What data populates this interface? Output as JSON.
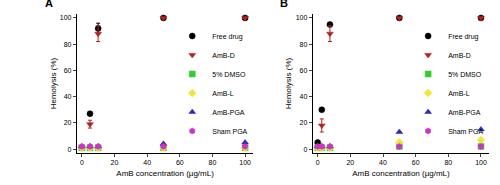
{
  "chart_data": [
    {
      "type": "scatter",
      "title": "A",
      "x_label": "AmB concentration (µg/mL)",
      "y_label": "Hemolysis (%)",
      "xlim": [
        -3,
        105
      ],
      "xticks": [
        0,
        20,
        40,
        60,
        80,
        100
      ],
      "ylim": [
        -3,
        103
      ],
      "yticks": [
        0,
        20,
        40,
        60,
        80,
        100
      ],
      "grid": false,
      "legend": "right",
      "x": [
        0,
        5,
        10,
        50,
        100
      ],
      "series": [
        {
          "name": "Free drug",
          "color": "#000000",
          "marker": "circle",
          "values": [
            1,
            27,
            92,
            100,
            100
          ],
          "error": [
            0,
            1,
            4,
            0,
            0
          ]
        },
        {
          "name": "AmB-D",
          "color": "#b22222",
          "marker": "triangle-down",
          "values": [
            1,
            19,
            88,
            100,
            100
          ],
          "error": [
            0,
            3,
            6,
            0,
            0
          ]
        },
        {
          "name": "5% DMSO",
          "color": "#33cc33",
          "marker": "square",
          "values": [
            1,
            1,
            1,
            1,
            1
          ],
          "error": [
            0,
            0,
            0,
            0,
            0
          ]
        },
        {
          "name": "AmB-L",
          "color": "#f2e43a",
          "marker": "diamond",
          "values": [
            1,
            1,
            1,
            1,
            1
          ],
          "error": [
            0,
            0,
            0,
            0,
            0
          ]
        },
        {
          "name": "AmB-PGA",
          "color": "#2a2ab8",
          "marker": "triangle-up",
          "values": [
            2,
            2,
            2,
            4,
            5
          ],
          "error": [
            0,
            0,
            0,
            0,
            0
          ]
        },
        {
          "name": "Sham PGA",
          "color": "#cc33cc",
          "marker": "hexagon",
          "values": [
            2,
            2,
            2,
            2,
            2
          ],
          "error": [
            0,
            0,
            0,
            0,
            0
          ]
        }
      ]
    },
    {
      "type": "scatter",
      "title": "B",
      "x_label": "AmB concentration (µg/mL)",
      "y_label": "Hemolysis (%)",
      "xlim": [
        -3,
        105
      ],
      "xticks": [
        0,
        20,
        40,
        60,
        80,
        100
      ],
      "ylim": [
        -3,
        103
      ],
      "yticks": [
        0,
        20,
        40,
        60,
        80,
        100
      ],
      "grid": false,
      "legend": "right",
      "x": [
        0,
        2.5,
        7.5,
        50,
        100
      ],
      "series": [
        {
          "name": "Free drug",
          "color": "#000000",
          "marker": "circle",
          "values": [
            5,
            30,
            95,
            100,
            100
          ],
          "error": [
            0,
            1,
            1,
            0,
            0
          ]
        },
        {
          "name": "AmB-D",
          "color": "#b22222",
          "marker": "triangle-down",
          "values": [
            1,
            18,
            88,
            100,
            100
          ],
          "error": [
            0,
            5,
            6,
            0,
            0
          ]
        },
        {
          "name": "5% DMSO",
          "color": "#33cc33",
          "marker": "square",
          "values": [
            1,
            1,
            1,
            2,
            2
          ],
          "error": [
            0,
            0,
            0,
            0,
            0
          ]
        },
        {
          "name": "AmB-L",
          "color": "#f2e43a",
          "marker": "diamond",
          "values": [
            1,
            1,
            1,
            5,
            7
          ],
          "error": [
            0,
            0,
            0,
            0,
            0
          ]
        },
        {
          "name": "AmB-PGA",
          "color": "#2a2ab8",
          "marker": "triangle-up",
          "values": [
            2,
            2,
            2,
            13,
            15
          ],
          "error": [
            0,
            0,
            0,
            0,
            0
          ]
        },
        {
          "name": "Sham PGA",
          "color": "#cc33cc",
          "marker": "hexagon",
          "values": [
            2,
            2,
            2,
            2,
            2
          ],
          "error": [
            0,
            0,
            0,
            0,
            0
          ]
        }
      ]
    }
  ]
}
